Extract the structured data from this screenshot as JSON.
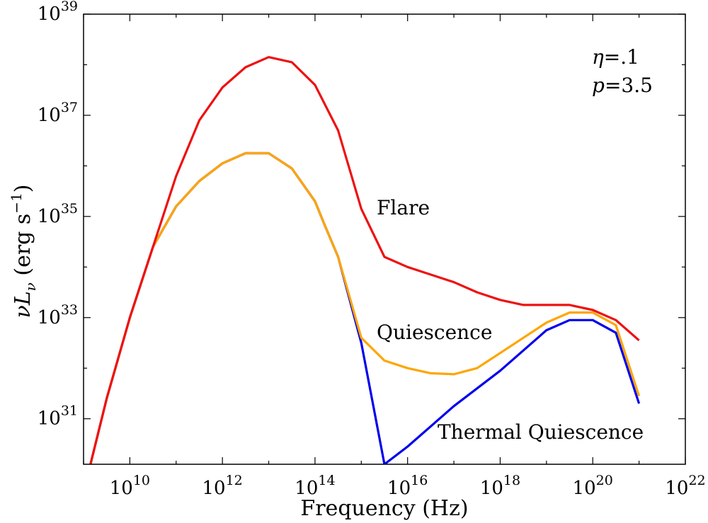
{
  "chart_data": {
    "type": "line",
    "xlabel": "Frequency (Hz)",
    "ylabel": "νL_ν  (erg  s^-1)",
    "x_scale": "log",
    "y_scale": "log",
    "xlim_exp": [
      9,
      22
    ],
    "ylim_exp": [
      30.1,
      39
    ],
    "x_tick_exponents": [
      10,
      12,
      14,
      16,
      18,
      20,
      22
    ],
    "y_tick_exponents": [
      31,
      33,
      35,
      37,
      39
    ],
    "tick_base": "10",
    "grid": false,
    "parameters": [
      {
        "symbol": "η",
        "eq": "=",
        "value": ".1"
      },
      {
        "symbol": "p",
        "eq": "=",
        "value": "3.5"
      }
    ],
    "series": [
      {
        "name": "Thermal Quiescence",
        "label": "Thermal Quiescence",
        "color": "#0000ee",
        "log_x": [
          9.15,
          9.5,
          10,
          10.5,
          11,
          11.5,
          12,
          12.5,
          13,
          13.5,
          14,
          14.2,
          14.5,
          15,
          15.5,
          16,
          16.5,
          17,
          17.5,
          18,
          18.5,
          19,
          19.5,
          20,
          20.5,
          21
        ],
        "log_y": [
          30.1,
          31.4,
          33.0,
          34.4,
          35.2,
          35.7,
          36.05,
          36.25,
          36.25,
          35.95,
          35.3,
          34.85,
          34.2,
          32.5,
          30.1,
          30.45,
          30.85,
          31.25,
          31.6,
          31.95,
          32.35,
          32.75,
          32.95,
          32.95,
          32.7,
          31.3
        ]
      },
      {
        "name": "Quiescence",
        "label": "Quiescence",
        "color": "#ffa500",
        "log_x": [
          9.15,
          9.5,
          10,
          10.5,
          11,
          11.5,
          12,
          12.5,
          13,
          13.5,
          14,
          14.2,
          14.5,
          15,
          15.5,
          16,
          16.5,
          17,
          17.5,
          18,
          18.5,
          19,
          19.5,
          20,
          20.5,
          21
        ],
        "log_y": [
          30.1,
          31.4,
          33.0,
          34.4,
          35.2,
          35.7,
          36.05,
          36.25,
          36.25,
          35.95,
          35.3,
          34.85,
          34.2,
          32.6,
          32.15,
          32.0,
          31.9,
          31.88,
          32.0,
          32.3,
          32.6,
          32.9,
          33.1,
          33.1,
          32.85,
          31.45
        ]
      },
      {
        "name": "Flare",
        "label": "Flare",
        "color": "#ee1111",
        "log_x": [
          9.15,
          9.5,
          10,
          10.5,
          11,
          11.5,
          12,
          12.5,
          13,
          13.5,
          14,
          14.5,
          15,
          15.5,
          16,
          16.5,
          17,
          17.5,
          18,
          18.5,
          19,
          19.5,
          20,
          20.5,
          21
        ],
        "log_y": [
          30.1,
          31.4,
          33.0,
          34.4,
          35.8,
          36.9,
          37.55,
          37.95,
          38.15,
          38.05,
          37.6,
          36.7,
          35.15,
          34.2,
          34.0,
          33.85,
          33.7,
          33.5,
          33.35,
          33.25,
          33.25,
          33.25,
          33.15,
          32.95,
          32.55
        ]
      }
    ]
  }
}
